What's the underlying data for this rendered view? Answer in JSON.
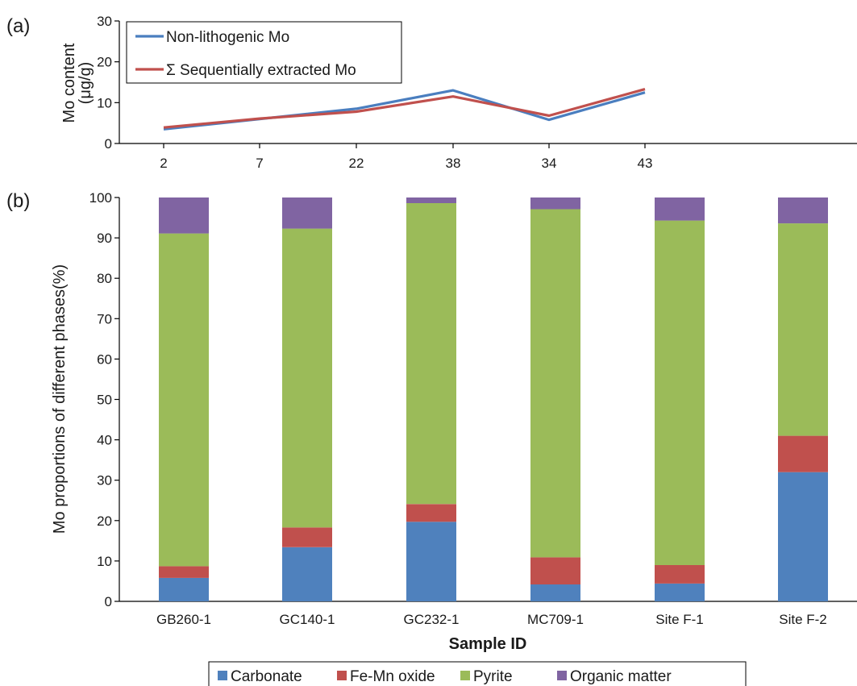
{
  "chart_data": [
    {
      "panel_label": "(a)",
      "type": "line",
      "ylabel_line1": "Mo content",
      "ylabel_line2": "(μg/g)",
      "ylim": [
        0,
        30
      ],
      "yticks": [
        0,
        10,
        20,
        30
      ],
      "categories": [
        "2",
        "7",
        "22",
        "38",
        "34",
        "43"
      ],
      "grid": false,
      "legend_placement": "top-left",
      "series": [
        {
          "name": "Non-lithogenic Mo",
          "color": "#4a7ebf",
          "values": [
            3.5,
            6.0,
            8.5,
            13.0,
            5.8,
            12.5
          ]
        },
        {
          "name": "Σ Sequentially extracted Mo",
          "color": "#c0504d",
          "values": [
            3.9,
            6.1,
            7.8,
            11.5,
            6.8,
            13.3
          ]
        }
      ]
    },
    {
      "panel_label": "(b)",
      "type": "bar",
      "stacked": true,
      "xlabel": "Sample ID",
      "ylabel": "Mo proportions of different phases(%)",
      "ylim": [
        0,
        100
      ],
      "yticks": [
        0,
        10,
        20,
        30,
        40,
        50,
        60,
        70,
        80,
        90,
        100
      ],
      "categories": [
        "GB260-1",
        "GC140-1",
        "GC232-1",
        "MC709-1",
        "Site F-1",
        "Site F-2"
      ],
      "grid": false,
      "legend_placement": "bottom",
      "series": [
        {
          "name": "Carbonate",
          "color": "#4f81bd",
          "values": [
            5.8,
            13.4,
            19.7,
            4.2,
            4.4,
            32.0
          ]
        },
        {
          "name": "Fe-Mn oxide",
          "color": "#c0504d",
          "values": [
            2.9,
            4.9,
            4.4,
            6.7,
            4.6,
            9.0
          ]
        },
        {
          "name": "Pyrite",
          "color": "#9bbb59",
          "values": [
            82.4,
            74.0,
            74.5,
            86.2,
            85.3,
            52.6
          ]
        },
        {
          "name": "Organic matter",
          "color": "#8064a2",
          "values": [
            8.9,
            7.7,
            1.4,
            2.9,
            5.7,
            6.4
          ]
        }
      ]
    }
  ]
}
